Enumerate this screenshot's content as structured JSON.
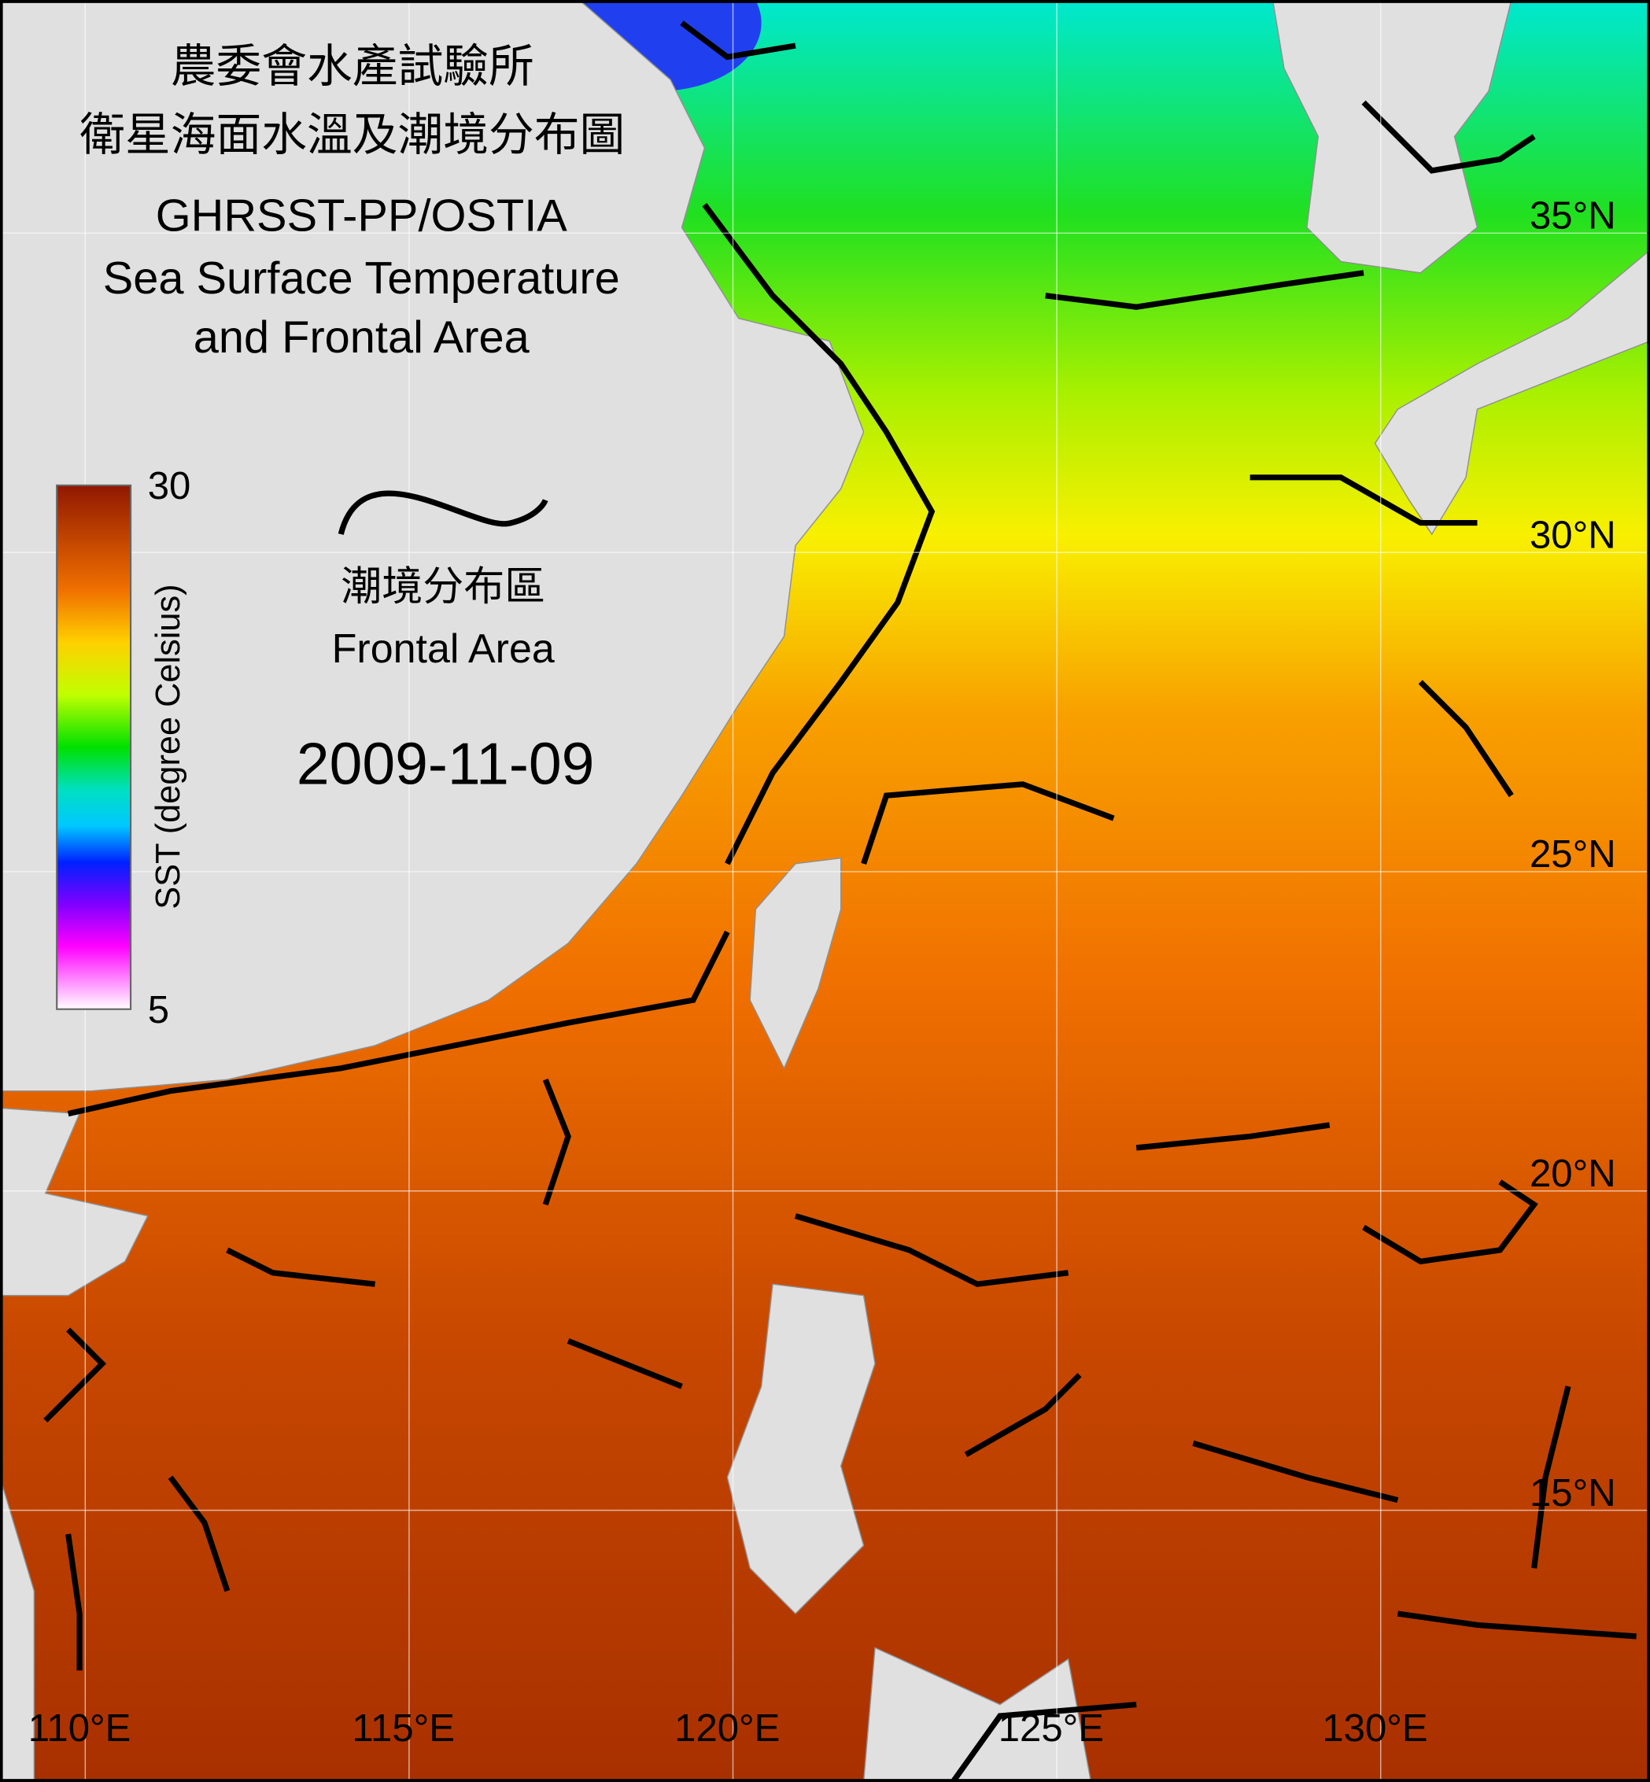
{
  "title": [
    "農委會水產試驗所",
    "衛星海面水溫及潮境分布圖",
    "GHRSST-PP/OSTIA",
    "Sea Surface Temperature",
    "and Frontal Area"
  ],
  "legend": {
    "label_zh": "潮境分布區",
    "label_en": "Frontal Area"
  },
  "date": "2009-11-09",
  "colorbar": {
    "label": "SST (degree Celsius)",
    "range": [
      5,
      30
    ],
    "ticks": [
      5,
      30
    ]
  },
  "graticule": {
    "lat": [
      {
        "value": 15,
        "label": "15°N"
      },
      {
        "value": 20,
        "label": "20°N"
      },
      {
        "value": 25,
        "label": "25°N"
      },
      {
        "value": 30,
        "label": "30°N"
      },
      {
        "value": 35,
        "label": "35°N"
      }
    ],
    "lon": [
      {
        "value": 110,
        "label": "110°E"
      },
      {
        "value": 115,
        "label": "115°E"
      },
      {
        "value": 120,
        "label": "120°E"
      },
      {
        "value": 125,
        "label": "125°E"
      },
      {
        "value": 130,
        "label": "130°E"
      }
    ]
  }
}
